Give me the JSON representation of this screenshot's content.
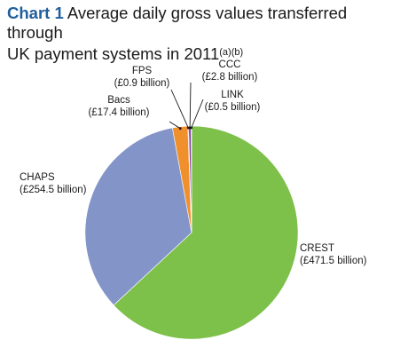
{
  "title": {
    "chart_number": "Chart 1",
    "line1_text": "Average daily gross values transferred through",
    "line2_text": "UK payment systems in 2011",
    "footnote_refs": "(a)(b)"
  },
  "colors": {
    "title_accent": "#1f5f9c",
    "CREST": "#7dc04a",
    "CHAPS": "#8395c8",
    "Bacs": "#f0902c",
    "FPS": "#e05a4a",
    "CCC": "#7a3f9a",
    "LINK": "#2a6a9a"
  },
  "chart_data": {
    "type": "pie",
    "title": "Average daily gross values transferred through UK payment systems in 2011",
    "unit": "£ billion",
    "start_angle_deg": 0,
    "direction": "clockwise",
    "slices": [
      {
        "name": "CREST",
        "value": 471.5,
        "label_value": "(£471.5 billion)"
      },
      {
        "name": "CHAPS",
        "value": 254.5,
        "label_value": "(£254.5 billion)"
      },
      {
        "name": "Bacs",
        "value": 17.4,
        "label_value": "(£17.4 billion)"
      },
      {
        "name": "FPS",
        "value": 0.9,
        "label_value": "(£0.9 billion)"
      },
      {
        "name": "CCC",
        "value": 2.8,
        "label_value": "(£2.8 billion)"
      },
      {
        "name": "LINK",
        "value": 0.5,
        "label_value": "(£0.5 billion)"
      }
    ]
  }
}
